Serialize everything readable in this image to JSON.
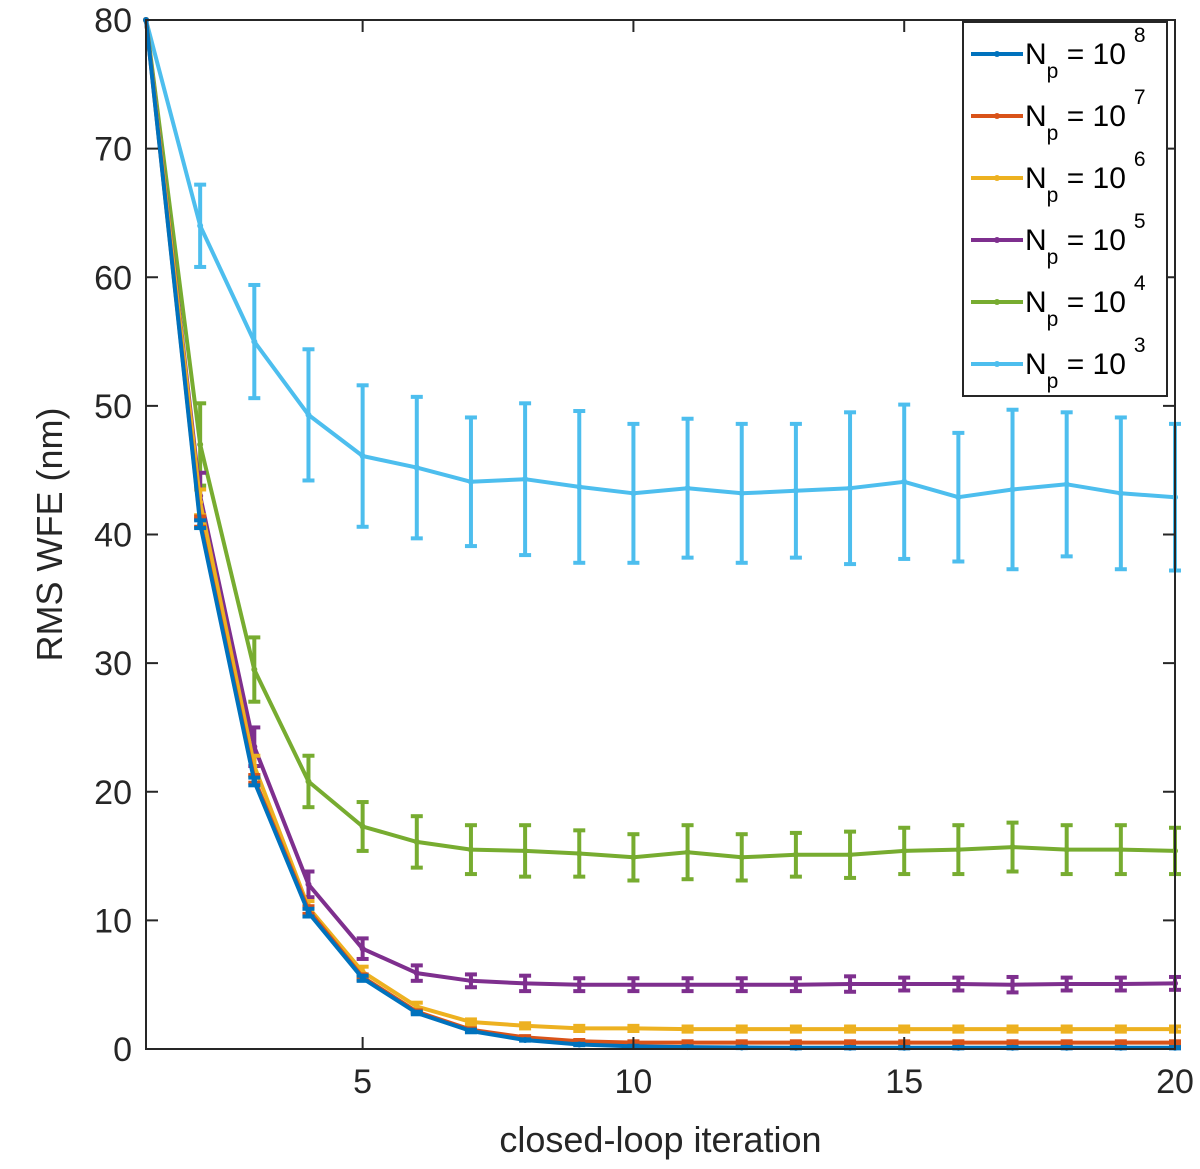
{
  "chart_data": {
    "type": "line",
    "title": "",
    "xlabel": "closed-loop iteration",
    "ylabel": "RMS WFE (nm)",
    "xlim": [
      1,
      20
    ],
    "ylim": [
      0,
      80
    ],
    "xticks": [
      5,
      10,
      15,
      20
    ],
    "yticks": [
      0,
      10,
      20,
      30,
      40,
      50,
      60,
      70,
      80
    ],
    "grid": false,
    "legend_location": "top-right",
    "x": [
      1,
      2,
      3,
      4,
      5,
      6,
      7,
      8,
      9,
      10,
      11,
      12,
      13,
      14,
      15,
      16,
      17,
      18,
      19,
      20
    ],
    "series": [
      {
        "name": "N_p = 10^8",
        "legend_base": "N",
        "legend_sub": "p",
        "legend_mid": " = 10",
        "legend_exp": "8",
        "color": "#0072BD",
        "values": [
          80,
          40.8,
          20.8,
          10.6,
          5.5,
          2.8,
          1.4,
          0.7,
          0.35,
          0.2,
          0.15,
          0.12,
          0.1,
          0.1,
          0.1,
          0.1,
          0.1,
          0.1,
          0.1,
          0.1
        ],
        "errors": [
          0,
          0.3,
          0.3,
          0.3,
          0.2,
          0.1,
          0.1,
          0.05,
          0.05,
          0.05,
          0.05,
          0.05,
          0.05,
          0.05,
          0.05,
          0.05,
          0.05,
          0.05,
          0.05,
          0.05
        ]
      },
      {
        "name": "N_p = 10^7",
        "legend_base": "N",
        "legend_sub": "p",
        "legend_mid": " = 10",
        "legend_exp": "7",
        "color": "#D95319",
        "values": [
          80,
          41.0,
          21.0,
          10.8,
          5.6,
          2.9,
          1.5,
          0.9,
          0.6,
          0.5,
          0.5,
          0.5,
          0.5,
          0.5,
          0.5,
          0.5,
          0.5,
          0.5,
          0.5,
          0.5
        ],
        "errors": [
          0,
          0.4,
          0.3,
          0.3,
          0.2,
          0.1,
          0.1,
          0.1,
          0.1,
          0.1,
          0.1,
          0.1,
          0.1,
          0.1,
          0.1,
          0.1,
          0.1,
          0.1,
          0.1,
          0.1
        ]
      },
      {
        "name": "N_p = 10^6",
        "legend_base": "N",
        "legend_sub": "p",
        "legend_mid": " = 10",
        "legend_exp": "6",
        "color": "#EDB120",
        "values": [
          80,
          42.5,
          22.0,
          11.0,
          6.0,
          3.3,
          2.1,
          1.8,
          1.6,
          1.6,
          1.55,
          1.55,
          1.55,
          1.55,
          1.55,
          1.55,
          1.55,
          1.55,
          1.55,
          1.55
        ],
        "errors": [
          0,
          1.0,
          0.8,
          0.5,
          0.4,
          0.3,
          0.2,
          0.2,
          0.2,
          0.2,
          0.2,
          0.2,
          0.2,
          0.2,
          0.2,
          0.2,
          0.2,
          0.2,
          0.2,
          0.2
        ]
      },
      {
        "name": "N_p = 10^5",
        "legend_base": "N",
        "legend_sub": "p",
        "legend_mid": " = 10",
        "legend_exp": "5",
        "color": "#7E2F8E",
        "values": [
          80,
          43.0,
          23.5,
          12.8,
          7.8,
          5.9,
          5.3,
          5.1,
          5.0,
          5.0,
          5.0,
          5.0,
          5.0,
          5.05,
          5.05,
          5.05,
          5.0,
          5.05,
          5.05,
          5.1
        ],
        "errors": [
          0,
          1.8,
          1.5,
          1.0,
          0.8,
          0.6,
          0.5,
          0.6,
          0.5,
          0.5,
          0.5,
          0.5,
          0.5,
          0.6,
          0.5,
          0.5,
          0.6,
          0.5,
          0.5,
          0.5
        ]
      },
      {
        "name": "N_p = 10^4",
        "legend_base": "N",
        "legend_sub": "p",
        "legend_mid": " = 10",
        "legend_exp": "4",
        "color": "#77AC30",
        "values": [
          80,
          47.0,
          29.5,
          20.8,
          17.3,
          16.1,
          15.5,
          15.4,
          15.2,
          14.9,
          15.3,
          14.9,
          15.1,
          15.1,
          15.4,
          15.5,
          15.7,
          15.5,
          15.5,
          15.4
        ],
        "errors": [
          0,
          3.2,
          2.5,
          2.0,
          1.9,
          2.0,
          1.9,
          2.0,
          1.8,
          1.8,
          2.1,
          1.8,
          1.7,
          1.8,
          1.8,
          1.9,
          1.9,
          1.9,
          1.9,
          1.8
        ]
      },
      {
        "name": "N_p = 10^3",
        "legend_base": "N",
        "legend_sub": "p",
        "legend_mid": " = 10",
        "legend_exp": "3",
        "color": "#4DBEEE",
        "values": [
          80,
          64.0,
          55.0,
          49.3,
          46.1,
          45.2,
          44.1,
          44.3,
          43.7,
          43.2,
          43.6,
          43.2,
          43.4,
          43.6,
          44.1,
          42.9,
          43.5,
          43.9,
          43.2,
          42.9
        ],
        "errors": [
          0,
          3.2,
          4.4,
          5.1,
          5.5,
          5.5,
          5.0,
          5.9,
          5.9,
          5.4,
          5.4,
          5.4,
          5.2,
          5.9,
          6.0,
          5.0,
          6.2,
          5.6,
          5.9,
          5.7
        ]
      }
    ]
  }
}
